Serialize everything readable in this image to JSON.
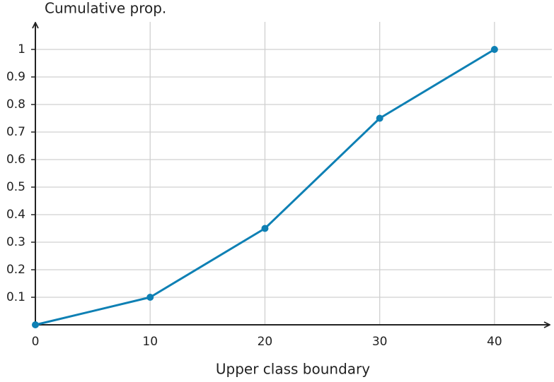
{
  "chart_data": {
    "type": "line",
    "y_label": "Cumulative prop.",
    "x_label": "Upper class boundary",
    "x": [
      0,
      10,
      20,
      30,
      40
    ],
    "series": [
      {
        "color": "#0e80b4",
        "values": [
          0,
          0.1,
          0.35,
          0.75,
          1
        ]
      }
    ],
    "xlim": [
      0,
      45
    ],
    "ylim": [
      0,
      1.1
    ],
    "xticks": [
      0,
      10,
      20,
      30,
      40
    ],
    "yticks": [
      0.1,
      0.2,
      0.3,
      0.4,
      0.5,
      0.6,
      0.7,
      0.8,
      0.9,
      1
    ],
    "grid": true
  }
}
